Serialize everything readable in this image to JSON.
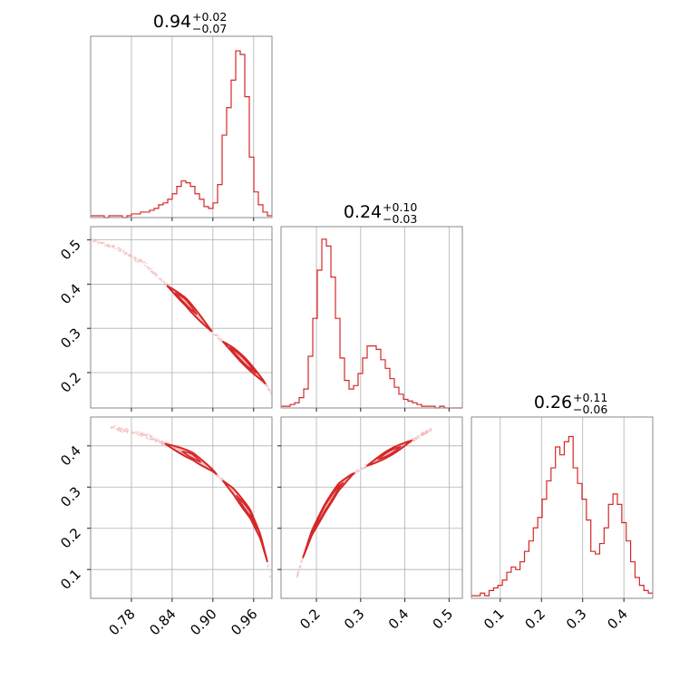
{
  "chart_data": {
    "type": "corner",
    "color": "#d62728",
    "fill_color": "#f4b6b7",
    "scatter_color": "#f2b4b5",
    "parameters": [
      {
        "title": {
          "median": "0.94",
          "plus": "+0.02",
          "minus": "−0.07"
        },
        "range": [
          0.72,
          0.987
        ],
        "ticks": [
          "0.78",
          "0.84",
          "0.90",
          "0.96"
        ],
        "tick_values": [
          0.78,
          0.84,
          0.9,
          0.96
        ]
      },
      {
        "title": {
          "median": "0.24",
          "plus": "+0.10",
          "minus": "−0.03"
        },
        "range": [
          0.12,
          0.53
        ],
        "ticks": [
          "0.2",
          "0.3",
          "0.4",
          "0.5"
        ],
        "tick_values": [
          0.2,
          0.3,
          0.4,
          0.5
        ]
      },
      {
        "title": {
          "median": "0.26",
          "plus": "+0.11",
          "minus": "−0.06"
        },
        "range": [
          0.03,
          0.47
        ],
        "ticks": [
          "0.1",
          "0.2",
          "0.3",
          "0.4"
        ],
        "tick_values": [
          0.1,
          0.2,
          0.3,
          0.4
        ]
      }
    ],
    "histograms": [
      {
        "param": 0,
        "bin_edges_range": [
          0.72,
          0.987
        ],
        "counts": [
          1,
          1,
          1,
          0,
          1,
          1,
          1,
          0,
          1,
          2,
          2,
          3,
          3,
          4,
          5,
          7,
          8,
          10,
          13,
          17,
          20,
          19,
          17,
          13,
          10,
          6,
          5,
          8,
          18,
          45,
          60,
          75,
          91,
          89,
          66,
          33,
          14,
          7,
          3,
          1
        ],
        "ymax": 94
      },
      {
        "param": 1,
        "bin_edges_range": [
          0.12,
          0.53
        ],
        "counts": [
          1,
          1,
          2,
          3,
          6,
          11,
          30,
          52,
          80,
          98,
          94,
          76,
          52,
          29,
          16,
          11,
          13,
          20,
          29,
          36,
          36,
          34,
          28,
          23,
          17,
          12,
          8,
          5,
          4,
          3,
          2,
          1,
          1,
          1,
          0,
          1,
          0,
          0,
          0,
          0
        ],
        "ymax": 100
      },
      {
        "param": 2,
        "bin_edges_range": [
          0.03,
          0.47
        ],
        "counts": [
          1,
          1,
          2,
          1,
          3,
          4,
          5,
          7,
          10,
          12,
          11,
          14,
          18,
          22,
          27,
          31,
          38,
          45,
          50,
          58,
          55,
          60,
          62,
          50,
          44,
          38,
          30,
          18,
          17,
          21,
          27,
          36,
          40,
          36,
          29,
          22,
          14,
          8,
          5,
          3,
          2
        ],
        "ymax": 66
      }
    ],
    "scatter_panels": [
      {
        "x_param": 0,
        "y_param": 1,
        "curve": [
          [
            0.715,
            0.505
          ],
          [
            0.76,
            0.48
          ],
          [
            0.8,
            0.445
          ],
          [
            0.83,
            0.4
          ],
          [
            0.86,
            0.36
          ],
          [
            0.9,
            0.29
          ],
          [
            0.93,
            0.25
          ],
          [
            0.95,
            0.22
          ],
          [
            0.975,
            0.18
          ],
          [
            0.987,
            0.15
          ]
        ],
        "contours": [
          {
            "from": 0.833,
            "to": 0.898,
            "width": 0.022
          },
          {
            "from": 0.915,
            "to": 0.977,
            "width": 0.022
          },
          {
            "from": 0.845,
            "to": 0.876,
            "width": 0.012
          },
          {
            "from": 0.925,
            "to": 0.963,
            "width": 0.012
          }
        ]
      },
      {
        "x_param": 0,
        "y_param": 2,
        "curve": [
          [
            0.75,
            0.445
          ],
          [
            0.8,
            0.425
          ],
          [
            0.83,
            0.405
          ],
          [
            0.87,
            0.375
          ],
          [
            0.9,
            0.34
          ],
          [
            0.93,
            0.29
          ],
          [
            0.955,
            0.235
          ],
          [
            0.97,
            0.18
          ],
          [
            0.98,
            0.12
          ],
          [
            0.985,
            0.08
          ]
        ],
        "contours": [
          {
            "from": 0.83,
            "to": 0.905,
            "width": 0.02
          },
          {
            "from": 0.915,
            "to": 0.98,
            "width": 0.024
          },
          {
            "from": 0.855,
            "to": 0.882,
            "width": 0.01
          },
          {
            "from": 0.935,
            "to": 0.965,
            "width": 0.012
          }
        ]
      },
      {
        "x_param": 1,
        "y_param": 2,
        "curve": [
          [
            0.155,
            0.08
          ],
          [
            0.17,
            0.13
          ],
          [
            0.19,
            0.19
          ],
          [
            0.22,
            0.25
          ],
          [
            0.25,
            0.3
          ],
          [
            0.28,
            0.33
          ],
          [
            0.32,
            0.355
          ],
          [
            0.36,
            0.38
          ],
          [
            0.41,
            0.41
          ],
          [
            0.46,
            0.44
          ]
        ],
        "contours": [
          {
            "from": 0.17,
            "to": 0.285,
            "width": 0.024
          },
          {
            "from": 0.315,
            "to": 0.415,
            "width": 0.018
          },
          {
            "from": 0.19,
            "to": 0.26,
            "width": 0.014
          },
          {
            "from": 0.34,
            "to": 0.39,
            "width": 0.01
          }
        ]
      }
    ]
  }
}
